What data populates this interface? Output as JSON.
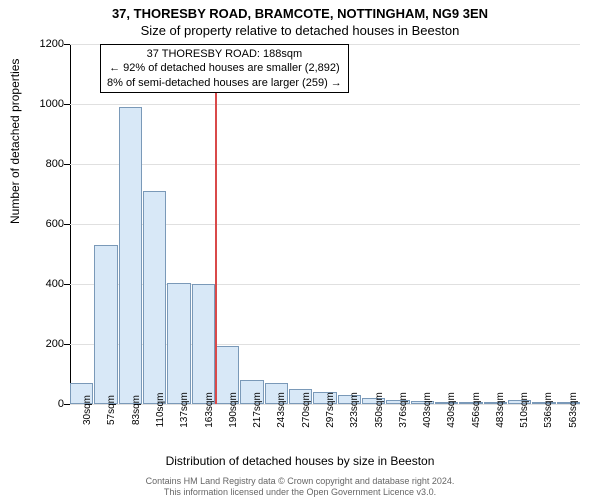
{
  "title_main": "37, THORESBY ROAD, BRAMCOTE, NOTTINGHAM, NG9 3EN",
  "title_sub": "Size of property relative to detached houses in Beeston",
  "annotation": {
    "line1": "37 THORESBY ROAD: 188sqm",
    "line2": "← 92% of detached houses are smaller (2,892)",
    "line3": "8% of semi-detached houses are larger (259) →"
  },
  "ylabel": "Number of detached properties",
  "xlabel": "Distribution of detached houses by size in Beeston",
  "footer_line1": "Contains HM Land Registry data © Crown copyright and database right 2024.",
  "footer_line2": "This information licensed under the Open Government Licence v3.0.",
  "chart": {
    "type": "histogram",
    "ylim": [
      0,
      1200
    ],
    "ytick_step": 200,
    "yticks": [
      0,
      200,
      400,
      600,
      800,
      1000,
      1200
    ],
    "x_categories": [
      "30sqm",
      "57sqm",
      "83sqm",
      "110sqm",
      "137sqm",
      "163sqm",
      "190sqm",
      "217sqm",
      "243sqm",
      "270sqm",
      "297sqm",
      "323sqm",
      "350sqm",
      "376sqm",
      "403sqm",
      "430sqm",
      "456sqm",
      "483sqm",
      "510sqm",
      "536sqm",
      "563sqm"
    ],
    "values": [
      70,
      530,
      990,
      710,
      405,
      400,
      195,
      80,
      70,
      50,
      40,
      30,
      20,
      15,
      10,
      8,
      5,
      5,
      12,
      5,
      5
    ],
    "bar_fill": "#d8e8f7",
    "bar_border": "#7a99b8",
    "marker_position_index": 6,
    "marker_color": "#d94a4a",
    "background_color": "#ffffff",
    "grid_color": "#e0e0e0",
    "axis_color": "#000000",
    "title_fontsize": 13,
    "label_fontsize": 12,
    "tick_fontsize": 11,
    "annotation_fontsize": 11
  }
}
